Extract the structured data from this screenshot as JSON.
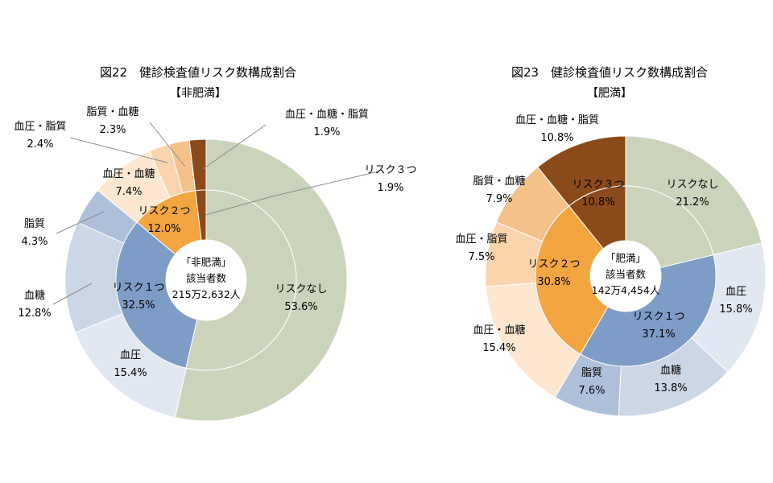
{
  "chart_data": [
    {
      "type": "pie",
      "subtype": "nested-donut",
      "title": "図22　健診検査値リスク数構成割合",
      "subtitle": "【非肥満】",
      "center_text": [
        "「非肥満」",
        "該当者数",
        "215万2,632人"
      ],
      "inner": [
        {
          "name": "リスクなし",
          "label": "53.6%",
          "value": 53.6,
          "color": "#c9d4bb"
        },
        {
          "name": "リスク１つ",
          "label": "32.5%",
          "value": 32.5,
          "color": "#7d9cc6"
        },
        {
          "name": "リスク２つ",
          "label": "12.0%",
          "value": 12.0,
          "color": "#f2a541"
        },
        {
          "name": "リスク３つ",
          "label": "1.9%",
          "value": 1.9,
          "color": "#8b4a1a"
        }
      ],
      "outer": [
        {
          "name": "リスクなし",
          "label": "53.6%",
          "value": 53.6,
          "color": "#c9d4bb"
        },
        {
          "name": "血圧",
          "label": "15.4%",
          "value": 15.4,
          "color": "#e2e8f2"
        },
        {
          "name": "血糖",
          "label": "12.8%",
          "value": 12.8,
          "color": "#cbd6e6"
        },
        {
          "name": "脂質",
          "label": "4.3%",
          "value": 4.3,
          "color": "#aec0d9"
        },
        {
          "name": "血圧・血糖",
          "label": "7.4%",
          "value": 7.4,
          "color": "#fde7d0"
        },
        {
          "name": "血圧・脂質",
          "label": "2.4%",
          "value": 2.4,
          "color": "#fad4ad"
        },
        {
          "name": "脂質・血糖",
          "label": "2.3%",
          "value": 2.3,
          "color": "#f5c28a"
        },
        {
          "name": "血圧・血糖・脂質",
          "label": "1.9%",
          "value": 1.9,
          "color": "#8b4a1a"
        }
      ]
    },
    {
      "type": "pie",
      "subtype": "nested-donut",
      "title": "図23　健診検査値リスク数構成割合",
      "subtitle": "【肥満】",
      "center_text": [
        "「肥満」",
        "該当者数",
        "142万4,454人"
      ],
      "inner": [
        {
          "name": "リスクなし",
          "label": "21.2%",
          "value": 21.2,
          "color": "#c9d4bb"
        },
        {
          "name": "リスク１つ",
          "label": "37.1%",
          "value": 37.1,
          "color": "#7d9cc6"
        },
        {
          "name": "リスク２つ",
          "label": "30.8%",
          "value": 30.8,
          "color": "#f2a541"
        },
        {
          "name": "リスク３つ",
          "label": "10.8%",
          "value": 10.8,
          "color": "#8b4a1a"
        }
      ],
      "outer": [
        {
          "name": "リスクなし",
          "label": "21.2%",
          "value": 21.2,
          "color": "#c9d4bb"
        },
        {
          "name": "血圧",
          "label": "15.8%",
          "value": 15.8,
          "color": "#e2e8f2"
        },
        {
          "name": "血糖",
          "label": "13.8%",
          "value": 13.8,
          "color": "#cbd6e6"
        },
        {
          "name": "脂質",
          "label": "7.6%",
          "value": 7.6,
          "color": "#aec0d9"
        },
        {
          "name": "血圧・血糖",
          "label": "15.4%",
          "value": 15.4,
          "color": "#fde7d0"
        },
        {
          "name": "血圧・脂質",
          "label": "7.5%",
          "value": 7.5,
          "color": "#fad4ad"
        },
        {
          "name": "脂質・血糖",
          "label": "7.9%",
          "value": 7.9,
          "color": "#f5c28a"
        },
        {
          "name": "血圧・血糖・脂質",
          "label": "10.8%",
          "value": 10.8,
          "color": "#8b4a1a"
        }
      ]
    }
  ]
}
